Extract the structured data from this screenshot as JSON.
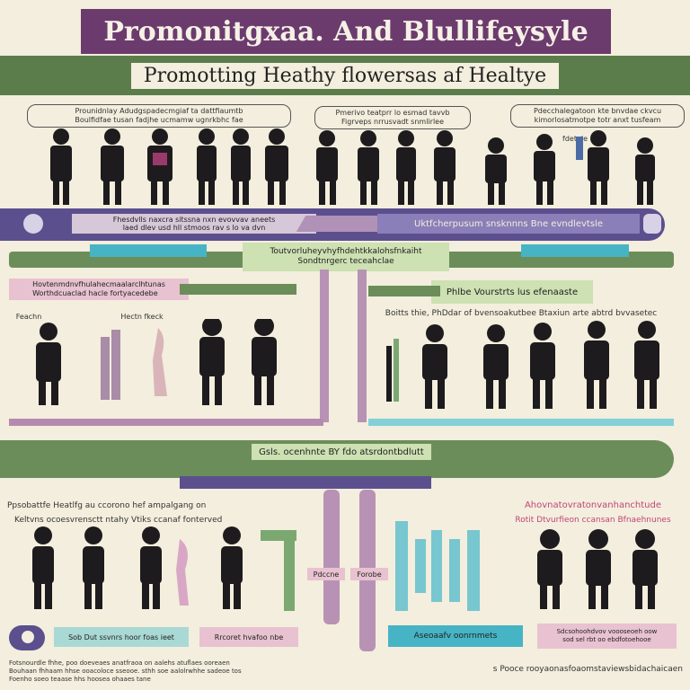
{
  "header": {
    "title": "Promonitgxaa. And Blullifeysyle",
    "subtitle": "Promotting Heathy flowersas af Healtye"
  },
  "row1": {
    "caption_left": "Prounidnlay Adudgspadecmgiaf ta dattfiaumtb\nBoulfidfae tusan fadjhe ucmamw ugnrkbhc fae",
    "caption_mid": "Pmerivo teatprr lo esmad tavvb\nFigrveps nrrusvadt snmlirlee",
    "caption_right": "Pdecchalegatoon kte bnvdae ckvcu\nkimorlosatmotpe totr anxt tusfeam",
    "caption_right_small": "fdetale"
  },
  "band1": {
    "left_label": "Fhesdvlls naxcra sitssna nxn evovvav aneets\nlaed dlev usd hll stmoos rav s lo va dvn",
    "right_label": "Uktfcherpusum snsknnns Bne evndlevtsle"
  },
  "middle": {
    "center_label": "Toutvorluheyvhyfhdehtkkalohsfnkaiht\nSondtnrgerc teceahclae",
    "left_caption": "Hovtenmdnvfhulahecmaalarclhtunas\nWorthdcuaclad hacle fortyacedebe",
    "right_label": "Phlbe Vourstrts lus efenaaste",
    "right_caption": "Boitts thie, PhDdar of bvensoakutbee Btaxiun arte abtrd bvvasetec",
    "small_left": "Feachn",
    "small_mid": "Hectn fkeck"
  },
  "lower": {
    "center_label": "Gsls. ocenhnte BY fdo atsrdontbdlutt",
    "left_title": "Ppsobattfe Heatlfg au ccorono hef ampalgang on",
    "left_sub": "Keltvns ocoesvrensctt ntahy Vtiks ccanaf fonterved",
    "right_title": "Ahovnatovratonvanhanchtude",
    "right_sub": "Rotit Dtvurfieon ccansan Bfnaehnunes",
    "pill_left": "Sob Dut ssvnrs hoor foas ieet",
    "pill_mid_left": "Rrcoret hvafoo nbe",
    "pill_mid_right": "Aseoaafv oonrnmets",
    "pill_right": "Sdcsohoohdvov voooseoeh oow\nsod sel rbt oo ebdfotoehooe",
    "pole_label_a": "Pdccne",
    "pole_label_b": "Forobe"
  },
  "footer": {
    "left_note": "Fotsnourdle fhhe, poo doeveaes anatfraoa on aalehs atuflaes ooreaen\nBouhaan fhhaam hhse ooacoloce sseooe. sthh soe aalolrwhhe sadeoe tos\nFoenho soeo teaase hhs hoosea ohaaes tane",
    "right_note": "s Pooce rooyaonasfoaomstaviewsbidachaicaen"
  },
  "colors": {
    "title_bg": "#6b3b6e",
    "band_green": "#5b7d4c",
    "band_purple": "#5c4f8e",
    "accent_teal": "#46b4c4",
    "accent_pink": "#e8c2d0",
    "background": "#f3eedd"
  }
}
